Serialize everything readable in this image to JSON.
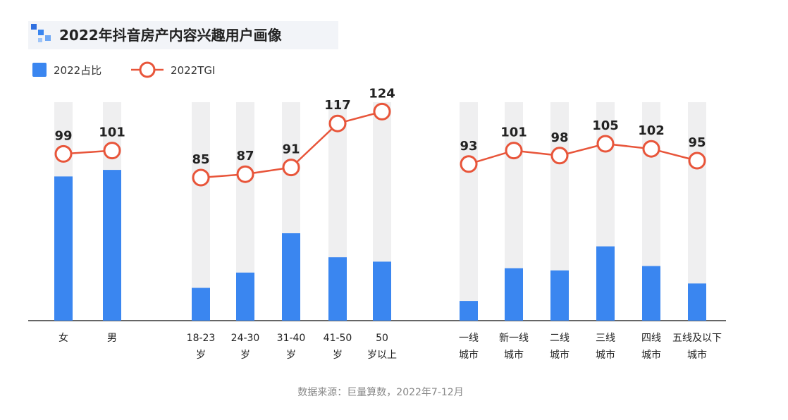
{
  "title": "2022年抖音房产内容兴趣用户画像",
  "legend": {
    "bar_label": "2022占比",
    "line_label": "2022TGI"
  },
  "source": "数据来源：巨量算数，2022年7-12月",
  "colors": {
    "bar": "#3a86f0",
    "track": "#efeff0",
    "line": "#e8553a",
    "title_bg": "#f2f4f8",
    "axis": "#333333"
  },
  "chart_data": {
    "type": "bar",
    "title": "2022年抖音房产内容兴趣用户画像",
    "series": [
      {
        "name": "2022占比",
        "kind": "bar"
      },
      {
        "name": "2022TGI",
        "kind": "line"
      }
    ],
    "groups": [
      {
        "name": "gender",
        "categories": [
          [
            "女"
          ],
          [
            "男"
          ]
        ],
        "bar_share": [
          0.66,
          0.69
        ],
        "tgi": [
          99,
          101
        ]
      },
      {
        "name": "age",
        "categories": [
          [
            "18-23",
            "岁"
          ],
          [
            "24-30",
            "岁"
          ],
          [
            "31-40",
            "岁"
          ],
          [
            "41-50",
            "岁"
          ],
          [
            "50",
            "岁以上"
          ]
        ],
        "bar_share": [
          0.15,
          0.22,
          0.4,
          0.29,
          0.27
        ],
        "tgi": [
          85,
          87,
          91,
          117,
          124
        ]
      },
      {
        "name": "city",
        "categories": [
          [
            "一线",
            "城市"
          ],
          [
            "新一线",
            "城市"
          ],
          [
            "二线",
            "城市"
          ],
          [
            "三线",
            "城市"
          ],
          [
            "四线",
            "城市"
          ],
          [
            "五线及以下",
            "城市"
          ]
        ],
        "bar_share": [
          0.09,
          0.24,
          0.23,
          0.34,
          0.25,
          0.17
        ],
        "tgi": [
          93,
          101,
          98,
          105,
          102,
          95
        ]
      }
    ],
    "bar_scale": "share of track height (unlabeled)",
    "grid": false,
    "legend_position": "top-left"
  }
}
